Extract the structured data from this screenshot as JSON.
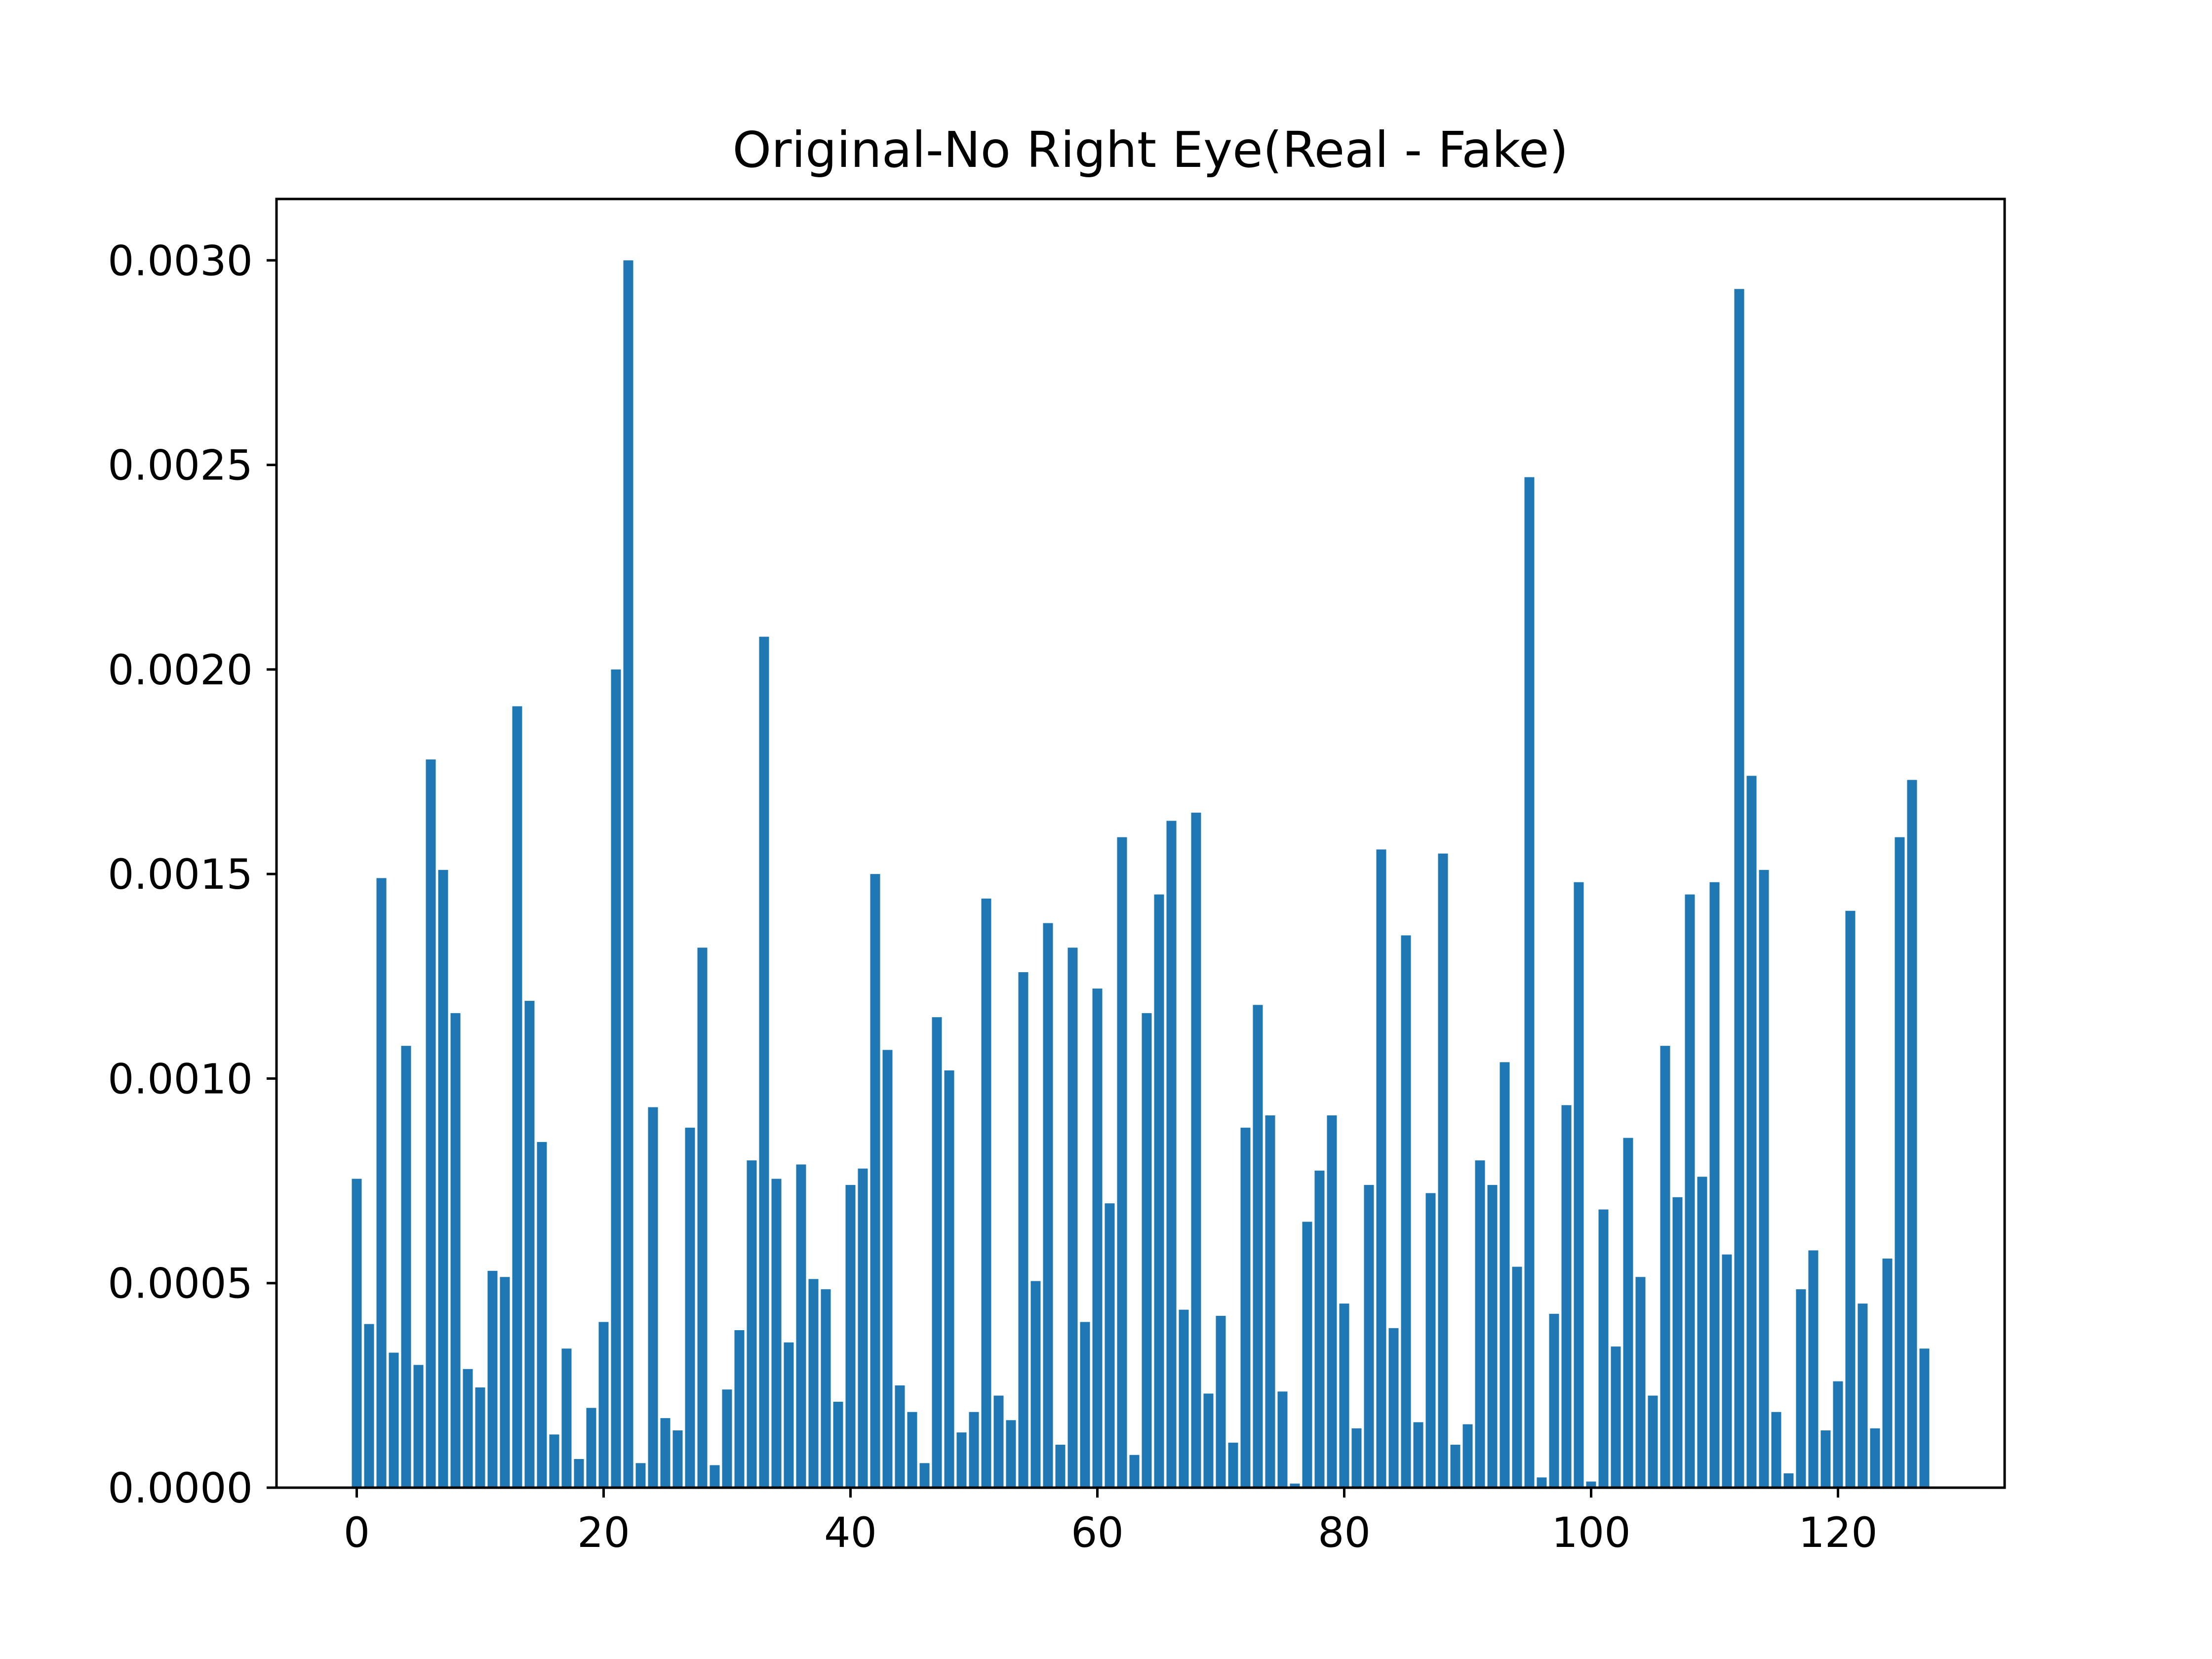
{
  "chart_data": {
    "type": "bar",
    "title": "Original-No Right Eye(Real - Fake)",
    "xlabel": "",
    "ylabel": "",
    "xlim": [
      -6.5,
      133.5
    ],
    "ylim": [
      0,
      0.00315
    ],
    "x_ticks": [
      0,
      20,
      40,
      60,
      80,
      100,
      120
    ],
    "x_tick_labels": [
      "0",
      "20",
      "40",
      "60",
      "80",
      "100",
      "120"
    ],
    "y_ticks": [
      0,
      0.0005,
      0.001,
      0.0015,
      0.002,
      0.0025,
      0.003
    ],
    "y_tick_labels": [
      "0.0000",
      "0.0005",
      "0.0010",
      "0.0015",
      "0.0020",
      "0.0025",
      "0.0030"
    ],
    "grid": false,
    "legend": "none",
    "bar_color": "#1f77b4",
    "x": [
      0,
      1,
      2,
      3,
      4,
      5,
      6,
      7,
      8,
      9,
      10,
      11,
      12,
      13,
      14,
      15,
      16,
      17,
      18,
      19,
      20,
      21,
      22,
      23,
      24,
      25,
      26,
      27,
      28,
      29,
      30,
      31,
      32,
      33,
      34,
      35,
      36,
      37,
      38,
      39,
      40,
      41,
      42,
      43,
      44,
      45,
      46,
      47,
      48,
      49,
      50,
      51,
      52,
      53,
      54,
      55,
      56,
      57,
      58,
      59,
      60,
      61,
      62,
      63,
      64,
      65,
      66,
      67,
      68,
      69,
      70,
      71,
      72,
      73,
      74,
      75,
      76,
      77,
      78,
      79,
      80,
      81,
      82,
      83,
      84,
      85,
      86,
      87,
      88,
      89,
      90,
      91,
      92,
      93,
      94,
      95,
      96,
      97,
      98,
      99,
      100,
      101,
      102,
      103,
      104,
      105,
      106,
      107,
      108,
      109,
      110,
      111,
      112,
      113,
      114,
      115,
      116,
      117,
      118,
      119,
      120,
      121,
      122,
      123,
      124,
      125,
      126,
      127
    ],
    "values": [
      0.000755,
      0.0004,
      0.00149,
      0.00033,
      0.00108,
      0.0003,
      0.00178,
      0.00151,
      0.00116,
      0.00029,
      0.000245,
      0.00053,
      0.000515,
      0.00191,
      0.00119,
      0.000845,
      0.00013,
      0.00034,
      7e-05,
      0.000195,
      0.000405,
      0.002,
      0.003,
      6e-05,
      0.00093,
      0.00017,
      0.00014,
      0.00088,
      0.00132,
      5.5e-05,
      0.00024,
      0.000385,
      0.0008,
      0.00208,
      0.000755,
      0.000355,
      0.00079,
      0.00051,
      0.000485,
      0.00021,
      0.00074,
      0.00078,
      0.0015,
      0.00107,
      0.00025,
      0.000185,
      6e-05,
      0.00115,
      0.00102,
      0.000135,
      0.000185,
      0.00144,
      0.000225,
      0.000165,
      0.00126,
      0.000505,
      0.00138,
      0.000105,
      0.00132,
      0.000405,
      0.00122,
      0.000695,
      0.00159,
      8e-05,
      0.00116,
      0.00145,
      0.00163,
      0.000435,
      0.00165,
      0.00023,
      0.00042,
      0.00011,
      0.00088,
      0.00118,
      0.00091,
      0.000235,
      1e-05,
      0.00065,
      0.000775,
      0.00091,
      0.00045,
      0.000145,
      0.00074,
      0.00156,
      0.00039,
      0.00135,
      0.00016,
      0.00072,
      0.00155,
      0.000105,
      0.000155,
      0.0008,
      0.00074,
      0.00104,
      0.00054,
      0.00247,
      2.5e-05,
      0.000425,
      0.000935,
      0.00148,
      1.5e-05,
      0.00068,
      0.000345,
      0.000855,
      0.000515,
      0.000225,
      0.00108,
      0.00071,
      0.00145,
      0.00076,
      0.00148,
      0.00057,
      0.00293,
      0.00174,
      0.00151,
      0.000185,
      3.5e-05,
      0.000485,
      0.00058,
      0.00014,
      0.00026,
      0.00141,
      0.00045,
      0.000145,
      0.00056,
      0.00159,
      0.00173,
      0.00034
    ]
  }
}
